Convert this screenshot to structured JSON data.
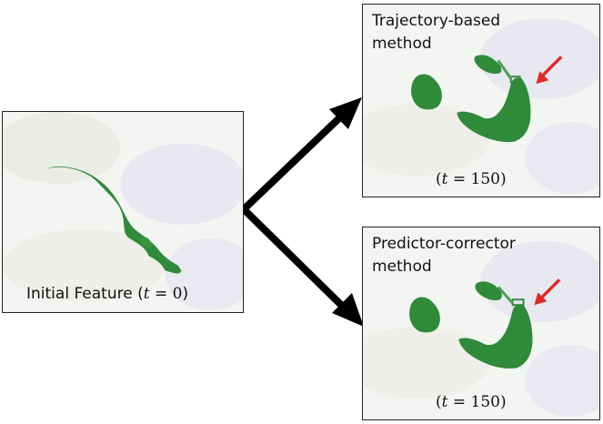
{
  "initial": {
    "caption_prefix": "Initial Feature (",
    "t_symbol": "t",
    "t_value": " = 0",
    "caption_suffix": ")"
  },
  "trajectory": {
    "title_line1": "Trajectory-based",
    "title_line2": "method",
    "t_prefix": "(",
    "t_symbol": "t",
    "t_value": " = 150",
    "t_suffix": ")"
  },
  "predictor_corrector": {
    "title_line1": "Predictor-corrector",
    "title_line2": "method",
    "t_prefix": "(",
    "t_symbol": "t",
    "t_value": " = 150",
    "t_suffix": ")"
  },
  "colors": {
    "feature_green": "#2f8a3a",
    "pointer_red": "#e0282a",
    "arrow_black": "#000000"
  }
}
